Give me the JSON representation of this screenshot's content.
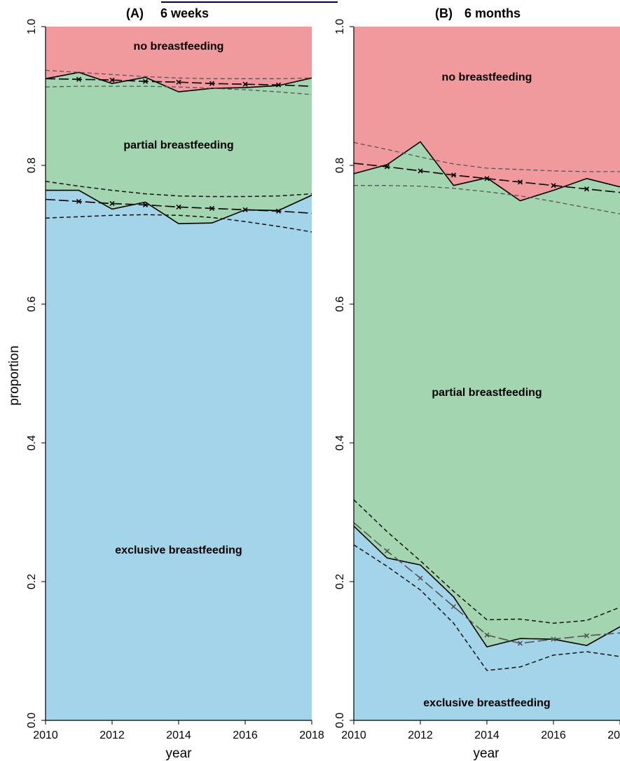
{
  "chart_data": [
    {
      "type": "area",
      "panel": "(A)",
      "title": "6 weeks",
      "xlabel": "year",
      "ylabel": "proportion",
      "xlim": [
        2010,
        2018
      ],
      "ylim": [
        0.0,
        1.0
      ],
      "x_ticks": [
        "2010",
        "2012",
        "2014",
        "2016",
        "2018"
      ],
      "y_ticks": [
        "0.0",
        "0.2",
        "0.4",
        "0.6",
        "0.8",
        "1.0"
      ],
      "colors": {
        "no": "#f19a9e",
        "partial": "#a2d5b0",
        "exclusive": "#a3d4ea"
      },
      "area_labels": {
        "no": "no breastfeeding",
        "partial": "partial breastfeeding",
        "exclusive": "exclusive breastfeeding"
      },
      "x": [
        2010,
        2011,
        2012,
        2013,
        2014,
        2015,
        2016,
        2017,
        2018
      ],
      "exclusive_upper": [
        0.764,
        0.764,
        0.737,
        0.747,
        0.716,
        0.717,
        0.736,
        0.735,
        0.757
      ],
      "any_upper": [
        0.925,
        0.934,
        0.918,
        0.927,
        0.906,
        0.911,
        0.912,
        0.915,
        0.926
      ],
      "exclusive_fit": [
        0.751,
        0.748,
        0.745,
        0.743,
        0.74,
        0.738,
        0.736,
        0.734,
        0.731
      ],
      "exclusive_ci_upper": [
        0.777,
        0.77,
        0.764,
        0.759,
        0.756,
        0.755,
        0.755,
        0.756,
        0.759
      ],
      "exclusive_ci_lower": [
        0.724,
        0.726,
        0.728,
        0.729,
        0.728,
        0.725,
        0.719,
        0.712,
        0.704
      ],
      "any_fit": [
        0.925,
        0.924,
        0.923,
        0.921,
        0.92,
        0.918,
        0.917,
        0.916,
        0.914
      ],
      "any_ci_upper": [
        0.937,
        0.934,
        0.931,
        0.928,
        0.926,
        0.925,
        0.925,
        0.925,
        0.926
      ],
      "any_ci_lower": [
        0.913,
        0.914,
        0.914,
        0.914,
        0.913,
        0.911,
        0.909,
        0.906,
        0.902
      ]
    },
    {
      "type": "area",
      "panel": "(B)",
      "title": "6 months",
      "xlabel": "year",
      "ylabel": "",
      "xlim": [
        2010,
        2018
      ],
      "ylim": [
        0.0,
        1.0
      ],
      "x_ticks": [
        "2010",
        "2012",
        "2014",
        "2016",
        "20"
      ],
      "y_ticks": [
        "0.0",
        "0.2",
        "0.4",
        "0.6",
        "0.8",
        "1.0"
      ],
      "colors": {
        "no": "#f19a9e",
        "partial": "#a2d5b0",
        "exclusive": "#a3d4ea"
      },
      "area_labels": {
        "no": "no breastfeeding",
        "partial": "partial breastfeeding",
        "exclusive": "exclusive breastfeeding"
      },
      "x": [
        2010,
        2011,
        2012,
        2013,
        2014,
        2015,
        2016,
        2017,
        2018
      ],
      "exclusive_upper": [
        0.28,
        0.234,
        0.224,
        0.178,
        0.106,
        0.118,
        0.117,
        0.108,
        0.135
      ],
      "any_upper": [
        0.788,
        0.801,
        0.834,
        0.771,
        0.782,
        0.749,
        0.764,
        0.781,
        0.769
      ],
      "exclusive_fit": [
        0.285,
        0.244,
        0.205,
        0.164,
        0.123,
        0.111,
        0.117,
        0.122,
        0.126
      ],
      "exclusive_ci_upper": [
        0.318,
        0.272,
        0.23,
        0.186,
        0.145,
        0.146,
        0.14,
        0.144,
        0.163
      ],
      "exclusive_ci_lower": [
        0.253,
        0.222,
        0.188,
        0.14,
        0.072,
        0.077,
        0.094,
        0.099,
        0.092
      ],
      "any_fit": [
        0.803,
        0.798,
        0.792,
        0.786,
        0.781,
        0.776,
        0.771,
        0.766,
        0.761
      ],
      "any_ci_upper": [
        0.833,
        0.823,
        0.812,
        0.802,
        0.796,
        0.794,
        0.792,
        0.791,
        0.791
      ],
      "any_ci_lower": [
        0.771,
        0.771,
        0.77,
        0.767,
        0.762,
        0.756,
        0.748,
        0.739,
        0.73
      ]
    }
  ]
}
